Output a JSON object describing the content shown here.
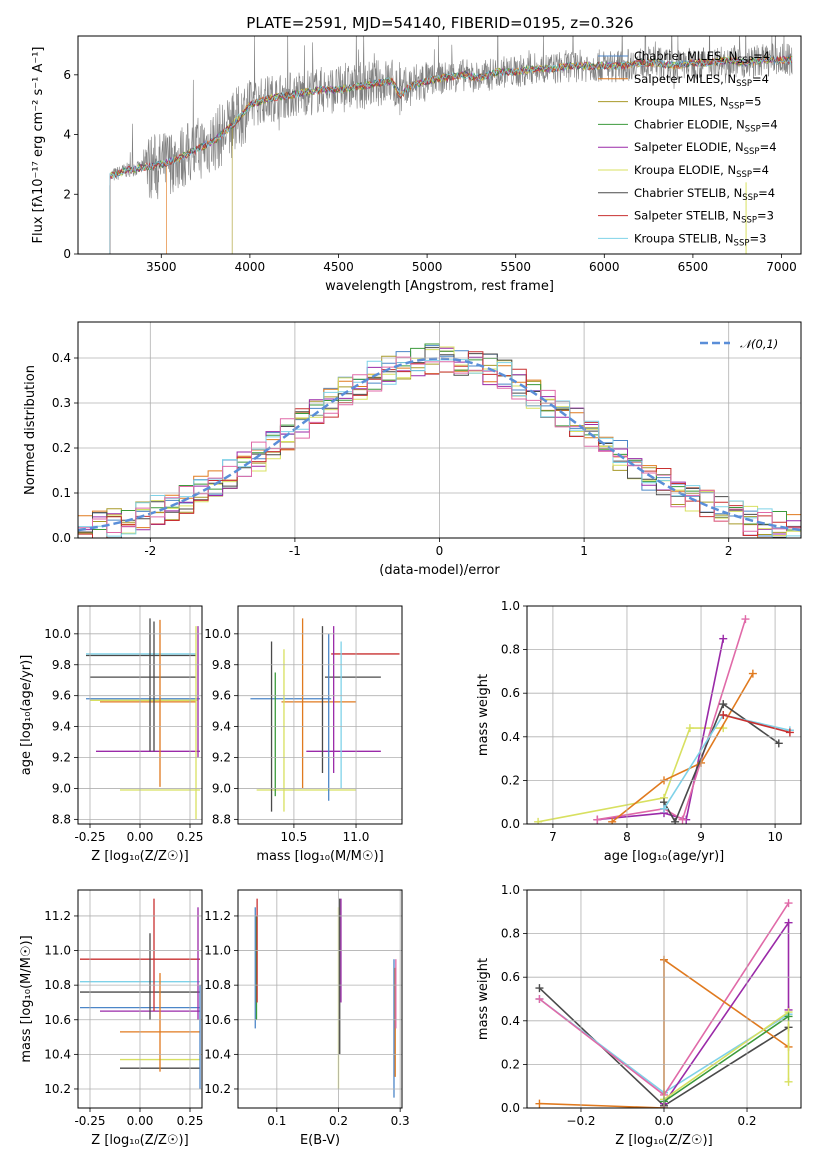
{
  "title": "PLATE=2591, MJD=54140, FIBERID=0195, z=0.326",
  "colors": {
    "models": [
      "#4c86c8",
      "#e07a1f",
      "#a89a2a",
      "#3b9a3b",
      "#9a2aa8",
      "#d8e060",
      "#4a4a4a",
      "#c83030",
      "#7fd2e8"
    ],
    "pink": "#e06aa8",
    "observed": "#808080",
    "normal": "#5a8ed8"
  },
  "chart_data": [
    {
      "type": "line",
      "name": "spectrum",
      "xlabel": "wavelength [Angstrom, rest frame]",
      "ylabel": "Flux [fλ10⁻¹⁷ erg cm⁻² s⁻¹ A⁻¹]",
      "xlim": [
        3030,
        7110
      ],
      "ylim": [
        0,
        7.3
      ],
      "xticks": [
        3500,
        4000,
        4500,
        5000,
        5500,
        6000,
        6500,
        7000
      ],
      "yticks": [
        0,
        2,
        4,
        6
      ],
      "legend_position": "top-right",
      "legend": [
        "Chabrier MILES, N_SSP=4",
        "Salpeter MILES, N_SSP=4",
        "Kroupa MILES, N_SSP=5",
        "Chabrier ELODIE, N_SSP=4",
        "Salpeter ELODIE, N_SSP=4",
        "Kroupa ELODIE, N_SSP=4",
        "Chabrier STELIB, N_SSP=4",
        "Salpeter STELIB, N_SSP=3",
        "Kroupa STELIB, N_SSP=3"
      ],
      "continuum": {
        "x": [
          3210,
          3300,
          3400,
          3500,
          3600,
          3700,
          3800,
          3900,
          4000,
          4100,
          4200,
          4300,
          4400,
          4500,
          4600,
          4700,
          4800,
          4850,
          4900,
          5000,
          5100,
          5200,
          5300,
          5400,
          5500,
          5600,
          5700,
          5800,
          5900,
          6000,
          6100,
          6200,
          6300,
          6400,
          6500,
          6600,
          6700,
          6800,
          6900,
          7000,
          7060
        ],
        "y": [
          2.6,
          2.8,
          2.9,
          3.0,
          3.2,
          3.5,
          3.8,
          4.3,
          5.0,
          5.2,
          5.3,
          5.4,
          5.5,
          5.5,
          5.6,
          5.7,
          5.8,
          5.3,
          5.6,
          5.8,
          5.9,
          6.0,
          5.9,
          6.1,
          6.1,
          6.2,
          6.2,
          6.3,
          6.3,
          6.3,
          6.3,
          6.4,
          6.4,
          6.3,
          6.4,
          6.4,
          6.5,
          6.4,
          6.5,
          6.5,
          6.5
        ]
      },
      "model_starts": [
        3210,
        3530,
        3900,
        3210,
        3210,
        3210,
        3210,
        3210,
        3210
      ]
    },
    {
      "type": "line",
      "name": "residual-histogram",
      "xlabel": "(data-model)/error",
      "ylabel": "Normed distribution",
      "xlim": [
        -2.5,
        2.5
      ],
      "ylim": [
        0,
        0.48
      ],
      "xticks": [
        -2,
        -1,
        0,
        1,
        2
      ],
      "yticks": [
        0.0,
        0.1,
        0.2,
        0.3,
        0.4
      ],
      "legend_position": "top-right",
      "legend": [
        "𝒩(0,1)"
      ],
      "bin_width": 0.1
    },
    {
      "type": "scatter",
      "name": "age-vs-Z",
      "xlabel": "Z [log₁₀(Z/Z☉)]",
      "ylabel": "age  [log₁₀(age/yr)]",
      "xlim": [
        -0.31,
        0.31
      ],
      "ylim": [
        8.77,
        10.18
      ],
      "xticks": [
        -0.25,
        0.0,
        0.25
      ],
      "yticks": [
        8.8,
        9.0,
        9.2,
        9.4,
        9.6,
        9.8,
        10.0
      ],
      "points": [
        {
          "x": 0.02,
          "y": 9.87,
          "xerr": [
            0.29,
            0.26
          ],
          "yerr": [
            0,
            0
          ],
          "c": 8
        },
        {
          "x": 0.0,
          "y": 9.86,
          "xerr": [
            0.27,
            0.28
          ],
          "yerr": [
            0,
            0
          ],
          "c": 6
        },
        {
          "x": 0.03,
          "y": 9.72,
          "xerr": [
            0.28,
            0.25
          ],
          "yerr": [
            0,
            0
          ],
          "c": 6
        },
        {
          "x": 0.0,
          "y": 9.58,
          "xerr": [
            0.27,
            0.3
          ],
          "yerr": [
            0,
            0
          ],
          "c": 0
        },
        {
          "x": 0.02,
          "y": 9.57,
          "xerr": [
            0.27,
            0.27
          ],
          "yerr": [
            0,
            0
          ],
          "c": 5
        },
        {
          "x": 0.05,
          "y": 9.56,
          "xerr": [
            0.25,
            0.23
          ],
          "yerr": [
            0,
            0
          ],
          "c": 1
        },
        {
          "x": 0.0,
          "y": 9.24,
          "xerr": [
            0.22,
            0.3
          ],
          "yerr": [
            0,
            0
          ],
          "c": 4
        },
        {
          "x": 0.1,
          "y": 8.99,
          "xerr": [
            0.2,
            0.2
          ],
          "yerr": [
            0,
            0
          ],
          "c": 5
        },
        {
          "x": 0.05,
          "y": 9.65,
          "xerr": [
            0,
            0
          ],
          "yerr": [
            0.41,
            0.45
          ],
          "c": 6
        },
        {
          "x": 0.07,
          "y": 9.65,
          "xerr": [
            0,
            0
          ],
          "yerr": [
            0.41,
            0.43
          ],
          "c": 6
        },
        {
          "x": 0.1,
          "y": 9.65,
          "xerr": [
            0,
            0
          ],
          "yerr": [
            0.64,
            0.44
          ],
          "c": 1
        },
        {
          "x": 0.28,
          "y": 9.55,
          "xerr": [
            0,
            0
          ],
          "yerr": [
            0.75,
            0.5
          ],
          "c": 5
        },
        {
          "x": 0.29,
          "y": 9.8,
          "xerr": [
            0,
            0
          ],
          "yerr": [
            0.3,
            0.25
          ],
          "c": 9
        },
        {
          "x": 0.29,
          "y": 9.65,
          "xerr": [
            0,
            0
          ],
          "yerr": [
            0.45,
            0.4
          ],
          "c": 4
        }
      ]
    },
    {
      "type": "scatter",
      "name": "age-vs-mass",
      "xlabel": "mass [log₁₀(M/M☉)]",
      "ylabel": "",
      "xlim": [
        10.05,
        11.37
      ],
      "ylim": [
        8.77,
        10.18
      ],
      "xticks": [
        10.5,
        11.0
      ],
      "yticks": [
        8.8,
        9.0,
        9.2,
        9.4,
        9.6,
        9.8,
        10.0
      ],
      "points": [
        {
          "x": 11.05,
          "y": 9.87,
          "xerr": [
            0.25,
            0.3
          ],
          "yerr": [
            0,
            0
          ],
          "c": 7
        },
        {
          "x": 10.95,
          "y": 9.72,
          "xerr": [
            0.2,
            0.25
          ],
          "yerr": [
            0,
            0
          ],
          "c": 6
        },
        {
          "x": 10.6,
          "y": 9.58,
          "xerr": [
            0.45,
            0.2
          ],
          "yerr": [
            0,
            0
          ],
          "c": 0
        },
        {
          "x": 10.7,
          "y": 9.56,
          "xerr": [
            0.3,
            0.3
          ],
          "yerr": [
            0,
            0
          ],
          "c": 1
        },
        {
          "x": 10.95,
          "y": 9.24,
          "xerr": [
            0.35,
            0.25
          ],
          "yerr": [
            0,
            0
          ],
          "c": 4
        },
        {
          "x": 10.6,
          "y": 8.99,
          "xerr": [
            0.4,
            0.4
          ],
          "yerr": [
            0,
            0
          ],
          "c": 5
        },
        {
          "x": 10.32,
          "y": 9.45,
          "xerr": [
            0,
            0
          ],
          "yerr": [
            0.6,
            0.5
          ],
          "c": 6
        },
        {
          "x": 10.35,
          "y": 9.45,
          "xerr": [
            0,
            0
          ],
          "yerr": [
            0.5,
            0.3
          ],
          "c": 3
        },
        {
          "x": 10.42,
          "y": 9.45,
          "xerr": [
            0,
            0
          ],
          "yerr": [
            0.6,
            0.45
          ],
          "c": 5
        },
        {
          "x": 10.57,
          "y": 9.5,
          "xerr": [
            0,
            0
          ],
          "yerr": [
            0.5,
            0.6
          ],
          "c": 1
        },
        {
          "x": 10.73,
          "y": 9.6,
          "xerr": [
            0,
            0
          ],
          "yerr": [
            0.5,
            0.45
          ],
          "c": 6
        },
        {
          "x": 10.78,
          "y": 9.5,
          "xerr": [
            0,
            0
          ],
          "yerr": [
            0.58,
            0.5
          ],
          "c": 0
        },
        {
          "x": 10.82,
          "y": 9.6,
          "xerr": [
            0,
            0
          ],
          "yerr": [
            0.5,
            0.45
          ],
          "c": 4
        },
        {
          "x": 10.88,
          "y": 9.5,
          "xerr": [
            0,
            0
          ],
          "yerr": [
            0.5,
            0.45
          ],
          "c": 8
        }
      ]
    },
    {
      "type": "line",
      "name": "mass-weight-vs-age",
      "xlabel": "age  [log₁₀(age/yr)]",
      "ylabel": "mass weight",
      "xlim": [
        6.65,
        10.35
      ],
      "ylim": [
        0,
        1.0
      ],
      "xticks": [
        7,
        8,
        9,
        10
      ],
      "yticks": [
        0.0,
        0.2,
        0.4,
        0.6,
        0.8,
        1.0
      ],
      "series": [
        {
          "c": 5,
          "x": [
            6.8,
            8.5,
            8.85,
            9.3
          ],
          "y": [
            0.01,
            0.12,
            0.44,
            0.44
          ]
        },
        {
          "c": 4,
          "x": [
            7.6,
            8.5,
            8.8,
            9.3
          ],
          "y": [
            0.02,
            0.05,
            0.02,
            0.85
          ]
        },
        {
          "c": "pink",
          "x": [
            7.6,
            8.5,
            8.75,
            9.6
          ],
          "y": [
            0.02,
            0.07,
            0.02,
            0.94
          ]
        },
        {
          "c": 1,
          "x": [
            7.8,
            8.5,
            9.0,
            9.7
          ],
          "y": [
            0.01,
            0.2,
            0.28,
            0.69
          ]
        },
        {
          "c": 6,
          "x": [
            8.5,
            8.65,
            9.3,
            10.05
          ],
          "y": [
            0.1,
            0.01,
            0.55,
            0.37
          ]
        },
        {
          "c": 8,
          "x": [
            8.5,
            9.3,
            10.2
          ],
          "y": [
            0.07,
            0.5,
            0.43
          ]
        },
        {
          "c": 7,
          "x": [
            9.3,
            10.2
          ],
          "y": [
            0.5,
            0.42
          ]
        }
      ]
    },
    {
      "type": "scatter",
      "name": "mass-vs-Z",
      "xlabel": "Z [log₁₀(Z/Z☉)]",
      "ylabel": "mass [log₁₀(M/M☉)]",
      "xlim": [
        -0.31,
        0.31
      ],
      "ylim": [
        10.09,
        11.35
      ],
      "xticks": [
        -0.25,
        0.0,
        0.25
      ],
      "yticks": [
        10.2,
        10.4,
        10.6,
        10.8,
        11.0,
        11.2
      ],
      "points": [
        {
          "x": 0.0,
          "y": 10.95,
          "xerr": [
            0.3,
            0.3
          ],
          "yerr": [
            0,
            0
          ],
          "c": 7
        },
        {
          "x": 0.0,
          "y": 10.82,
          "xerr": [
            0.3,
            0.3
          ],
          "yerr": [
            0,
            0
          ],
          "c": 8
        },
        {
          "x": 0.0,
          "y": 10.76,
          "xerr": [
            0.3,
            0.3
          ],
          "yerr": [
            0,
            0
          ],
          "c": 6
        },
        {
          "x": 0.0,
          "y": 10.67,
          "xerr": [
            0.3,
            0.3
          ],
          "yerr": [
            0,
            0
          ],
          "c": 0
        },
        {
          "x": 0.05,
          "y": 10.65,
          "xerr": [
            0.25,
            0.25
          ],
          "yerr": [
            0,
            0
          ],
          "c": 4
        },
        {
          "x": 0.1,
          "y": 10.53,
          "xerr": [
            0.2,
            0.2
          ],
          "yerr": [
            0,
            0
          ],
          "c": 1
        },
        {
          "x": 0.1,
          "y": 10.37,
          "xerr": [
            0.2,
            0.2
          ],
          "yerr": [
            0,
            0
          ],
          "c": 5
        },
        {
          "x": 0.1,
          "y": 10.32,
          "xerr": [
            0.2,
            0.2
          ],
          "yerr": [
            0,
            0
          ],
          "c": 6
        },
        {
          "x": 0.05,
          "y": 10.85,
          "xerr": [
            0,
            0
          ],
          "yerr": [
            0.25,
            0.25
          ],
          "c": 6
        },
        {
          "x": 0.07,
          "y": 10.95,
          "xerr": [
            0,
            0
          ],
          "yerr": [
            0.3,
            0.35
          ],
          "c": 7
        },
        {
          "x": 0.1,
          "y": 10.6,
          "xerr": [
            0,
            0
          ],
          "yerr": [
            0.3,
            0.27
          ],
          "c": 1
        },
        {
          "x": 0.29,
          "y": 10.8,
          "xerr": [
            0,
            0
          ],
          "yerr": [
            0.2,
            0.45
          ],
          "c": 4
        },
        {
          "x": 0.3,
          "y": 10.5,
          "xerr": [
            0,
            0
          ],
          "yerr": [
            0.3,
            0.3
          ],
          "c": 0
        }
      ]
    },
    {
      "type": "scatter",
      "name": "mass-vs-EBV",
      "xlabel": "E(B-V)",
      "ylabel": "",
      "xlim": [
        0.037,
        0.303
      ],
      "ylim": [
        10.09,
        11.35
      ],
      "xticks": [
        0.1,
        0.2,
        0.3
      ],
      "yticks": [
        10.2,
        10.4,
        10.6,
        10.8,
        11.0,
        11.2
      ],
      "points": [
        {
          "x": 0.065,
          "y": 10.9,
          "xerr": [
            0,
            0
          ],
          "yerr": [
            0.35,
            0.35
          ],
          "c": 0
        },
        {
          "x": 0.067,
          "y": 10.9,
          "xerr": [
            0,
            0
          ],
          "yerr": [
            0.3,
            0.3
          ],
          "c": 3
        },
        {
          "x": 0.068,
          "y": 10.9,
          "xerr": [
            0,
            0
          ],
          "yerr": [
            0.2,
            0.4
          ],
          "c": 7
        },
        {
          "x": 0.2,
          "y": 10.75,
          "xerr": [
            0,
            0
          ],
          "yerr": [
            0.55,
            0.5
          ],
          "c": 5
        },
        {
          "x": 0.202,
          "y": 10.9,
          "xerr": [
            0,
            0
          ],
          "yerr": [
            0.5,
            0.4
          ],
          "c": 6
        },
        {
          "x": 0.204,
          "y": 11.0,
          "xerr": [
            0,
            0
          ],
          "yerr": [
            0.3,
            0.3
          ],
          "c": 4
        },
        {
          "x": 0.29,
          "y": 10.55,
          "xerr": [
            0,
            0
          ],
          "yerr": [
            0.4,
            0.4
          ],
          "c": 0
        },
        {
          "x": 0.292,
          "y": 10.6,
          "xerr": [
            0,
            0
          ],
          "yerr": [
            0.33,
            0.3
          ],
          "c": 1
        },
        {
          "x": 0.293,
          "y": 10.75,
          "xerr": [
            0,
            0
          ],
          "yerr": [
            0.2,
            0.2
          ],
          "c": "pink"
        }
      ]
    },
    {
      "type": "line",
      "name": "mass-weight-vs-Z",
      "xlabel": "Z [log₁₀(Z/Z☉)]",
      "ylabel": "mass weight",
      "xlim": [
        -0.33,
        0.33
      ],
      "ylim": [
        0,
        1.0
      ],
      "xticks": [
        -0.2,
        0.0,
        0.2
      ],
      "yticks": [
        0.0,
        0.2,
        0.4,
        0.6,
        0.8,
        1.0
      ],
      "series": [
        {
          "c": 6,
          "x": [
            -0.3,
            0.0,
            0.3
          ],
          "y": [
            0.55,
            0.01,
            0.37
          ]
        },
        {
          "c": 8,
          "x": [
            -0.3,
            0.0,
            0.3
          ],
          "y": [
            0.5,
            0.07,
            0.43
          ]
        },
        {
          "c": "pink",
          "x": [
            -0.3,
            0.0,
            0.3
          ],
          "y": [
            0.5,
            0.06,
            0.94
          ]
        },
        {
          "c": 1,
          "x": [
            -0.3,
            0.0,
            0.0,
            0.3
          ],
          "y": [
            0.02,
            0.0,
            0.68,
            0.28
          ]
        },
        {
          "c": 4,
          "x": [
            0.0,
            0.3,
            0.3
          ],
          "y": [
            0.02,
            0.85,
            0.45
          ]
        },
        {
          "c": 5,
          "x": [
            0.0,
            0.3,
            0.3
          ],
          "y": [
            0.04,
            0.44,
            0.12
          ]
        },
        {
          "c": 3,
          "x": [
            0.0,
            0.3
          ],
          "y": [
            0.03,
            0.42
          ]
        }
      ]
    }
  ]
}
